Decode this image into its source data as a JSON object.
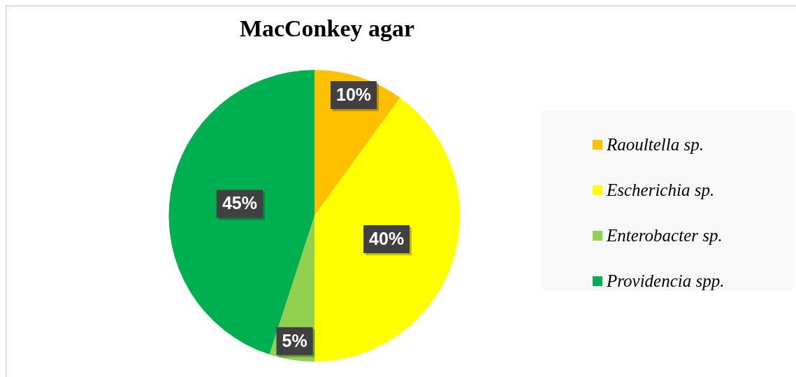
{
  "chart_data": {
    "type": "pie",
    "title": "MacConkey agar",
    "categories": [
      "Raoultella sp.",
      "Escherichia sp.",
      "Enterobacter sp.",
      "Providencia spp."
    ],
    "values": [
      10,
      40,
      5,
      45
    ],
    "colors": [
      "#ffc000",
      "#ffff00",
      "#92d050",
      "#00b050"
    ],
    "value_labels": [
      "10%",
      "40%",
      "5%",
      "45%"
    ],
    "legend": "right"
  }
}
